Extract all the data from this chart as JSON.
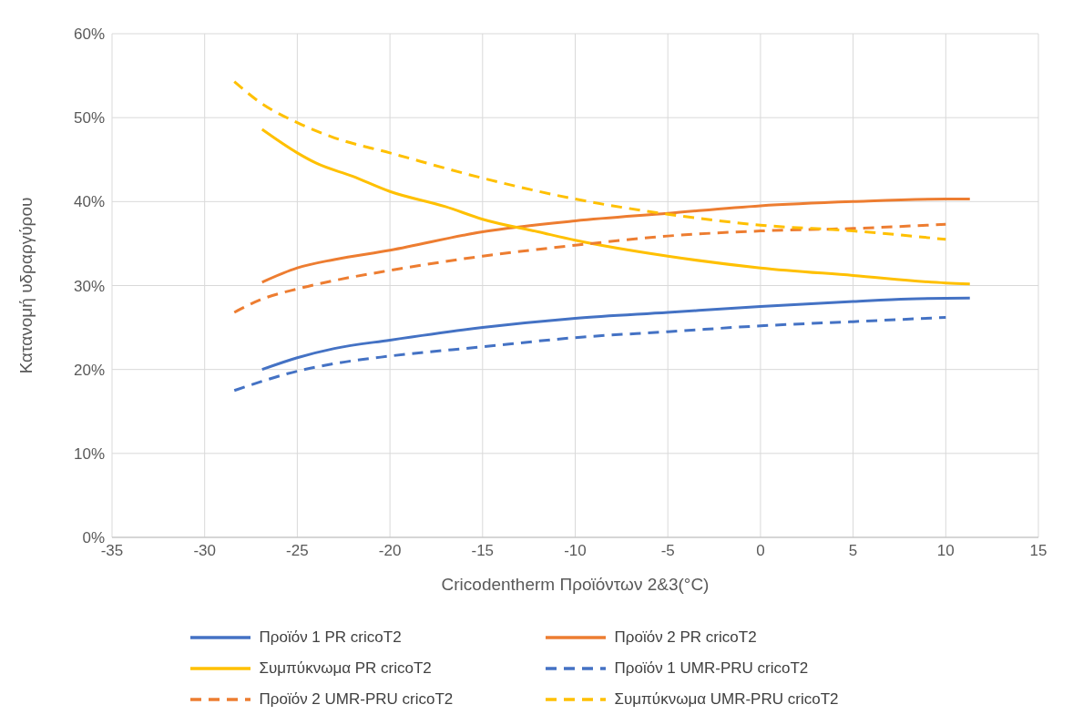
{
  "chart_data": {
    "type": "line",
    "xlabel": "Cricodentherm Προϊόντων 2&3(°C)",
    "ylabel": "Κατανομή υδραργύρου",
    "xlim": [
      -35,
      15
    ],
    "xticks": [
      -35,
      -30,
      -25,
      -20,
      -15,
      -10,
      -5,
      0,
      5,
      10,
      15
    ],
    "ylim": [
      0,
      60
    ],
    "yticks": [
      {
        "value": 0,
        "label": "0%"
      },
      {
        "value": 10,
        "label": "10%"
      },
      {
        "value": 20,
        "label": "20%"
      },
      {
        "value": 30,
        "label": "30%"
      },
      {
        "value": 40,
        "label": "40%"
      },
      {
        "value": 50,
        "label": "50%"
      },
      {
        "value": 60,
        "label": "60%"
      }
    ],
    "grid": true,
    "legend": "bottom",
    "marker": "none",
    "series": [
      {
        "name": "Προϊόν 1 PR cricoT2",
        "color": "#4472c4",
        "line_style": "solid",
        "x": [
          -26.9,
          -25,
          -23,
          -20,
          -15,
          -10,
          -5,
          0,
          5,
          8,
          11.3
        ],
        "values": [
          20.0,
          21.4,
          22.5,
          23.5,
          25.0,
          26.1,
          26.8,
          27.5,
          28.1,
          28.4,
          28.5
        ]
      },
      {
        "name": "Προϊόν 2 PR cricoT2",
        "color": "#ed7d31",
        "line_style": "solid",
        "x": [
          -26.9,
          -25,
          -23,
          -20,
          -15,
          -10,
          -5,
          0,
          5,
          10,
          11.3
        ],
        "values": [
          30.4,
          32.1,
          33.1,
          34.2,
          36.4,
          37.7,
          38.6,
          39.5,
          40.0,
          40.3,
          40.3
        ]
      },
      {
        "name": "Συμπύκνωμα PR cricoT2",
        "color": "#ffc000",
        "line_style": "solid",
        "x": [
          -26.9,
          -25,
          -24,
          -22,
          -20,
          -17,
          -15,
          -12,
          -10,
          -5,
          0,
          5,
          10,
          11.3
        ],
        "values": [
          48.6,
          45.8,
          44.6,
          43.0,
          41.2,
          39.4,
          37.9,
          36.4,
          35.4,
          33.5,
          32.1,
          31.2,
          30.3,
          30.2
        ]
      },
      {
        "name": "Προϊόν 1 UMR-PRU cricoT2",
        "color": "#4472c4",
        "line_style": "dashed",
        "x": [
          -28.4,
          -25,
          -23,
          -20,
          -15,
          -10,
          -5,
          0,
          5,
          10
        ],
        "values": [
          17.5,
          19.8,
          20.7,
          21.6,
          22.7,
          23.8,
          24.5,
          25.2,
          25.7,
          26.2
        ]
      },
      {
        "name": "Προϊόν 2 UMR-PRU cricoT2",
        "color": "#ed7d31",
        "line_style": "dashed",
        "x": [
          -28.4,
          -27,
          -25,
          -23,
          -20,
          -15,
          -10,
          -5,
          0,
          5,
          10
        ],
        "values": [
          26.8,
          28.3,
          29.6,
          30.6,
          31.8,
          33.5,
          34.8,
          35.9,
          36.5,
          36.8,
          37.3
        ]
      },
      {
        "name": "Συμπύκνωμα UMR-PRU cricoT2",
        "color": "#ffc000",
        "line_style": "dashed",
        "x": [
          -28.4,
          -27,
          -25,
          -23,
          -20,
          -15,
          -10,
          -5,
          0,
          5,
          10
        ],
        "values": [
          54.3,
          51.8,
          49.4,
          47.6,
          45.8,
          42.8,
          40.3,
          38.5,
          37.2,
          36.5,
          35.5
        ]
      }
    ]
  }
}
